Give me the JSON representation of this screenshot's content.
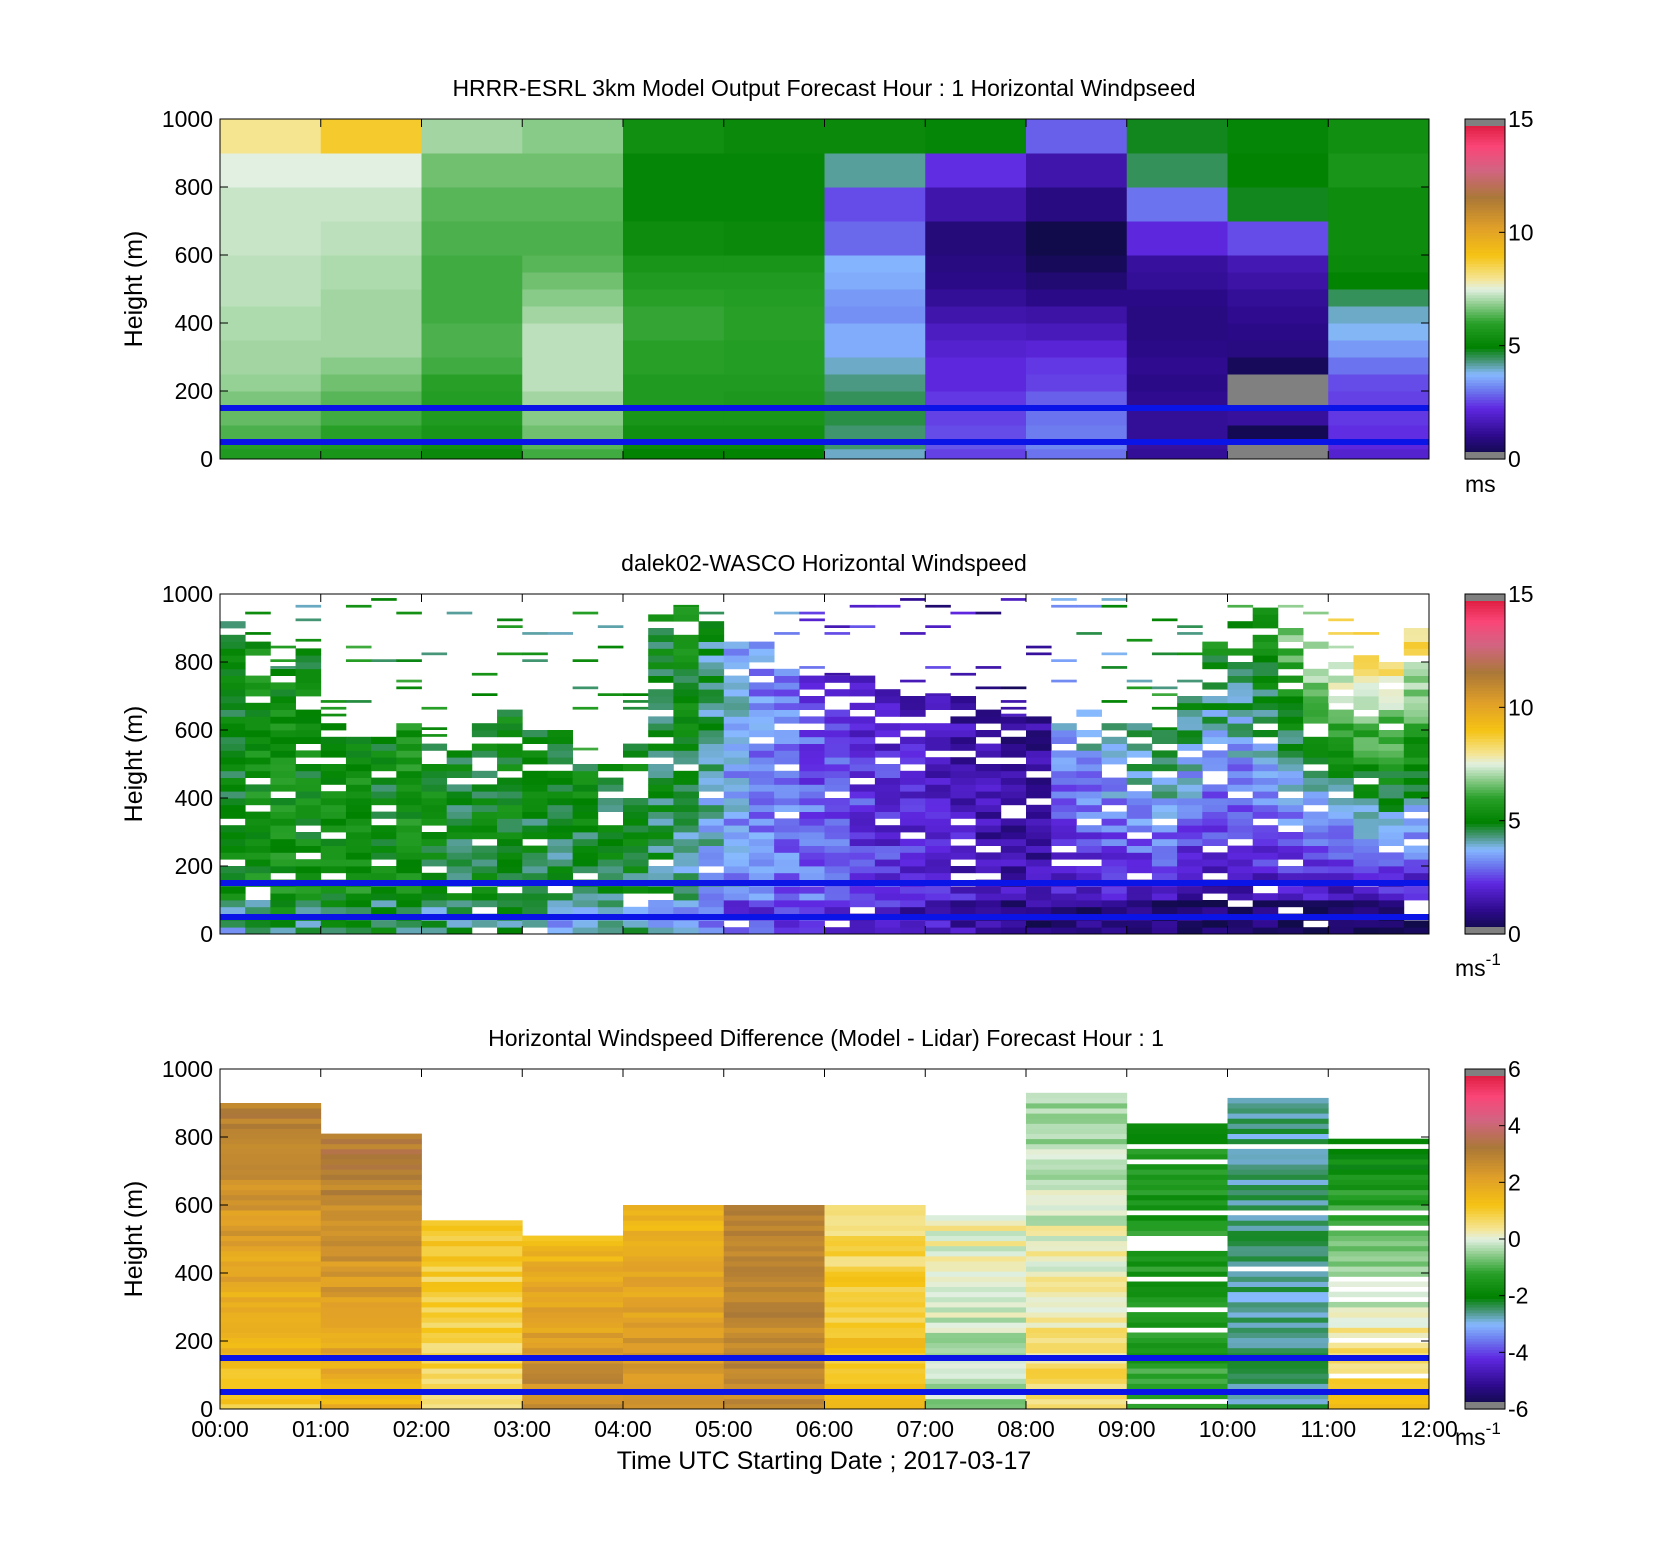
{
  "figure": {
    "x_ticks": [
      "00:00",
      "01:00",
      "02:00",
      "03:00",
      "04:00",
      "05:00",
      "06:00",
      "07:00",
      "08:00",
      "09:00",
      "10:00",
      "11:00",
      "12:00"
    ],
    "x_label": "Time UTC  Starting Date ; 2017-03-17"
  },
  "chart_data": [
    {
      "type": "heatmap",
      "title": "HRRR-ESRL 3km Model Output   Forecast Hour : 1 Horizontal Windpseed",
      "ylabel": "Height (m)",
      "x_range_hours": [
        0,
        12
      ],
      "ylim": [
        0,
        1000
      ],
      "y_ticks": [
        0,
        200,
        400,
        600,
        800,
        1000
      ],
      "colorbar": {
        "ticks": [
          0,
          5,
          10,
          15
        ],
        "unit": "ms",
        "range": [
          0,
          15
        ]
      },
      "reference_lines_m": [
        150,
        50
      ],
      "colors": {
        "reference_line": "#0a14e6",
        "missing": "#808080"
      },
      "cell_height_edges_m": [
        0,
        30,
        60,
        100,
        150,
        200,
        250,
        300,
        350,
        400,
        450,
        500,
        550,
        600,
        700,
        800,
        900,
        1000
      ],
      "columns_hour_start": [
        0,
        1,
        2,
        3,
        4,
        5,
        6,
        7,
        8,
        9,
        10,
        11
      ],
      "values": [
        [
          5.8,
          5.6,
          5.2,
          6.2,
          5.0,
          5.0,
          4.0,
          2.5,
          3.0,
          1.2,
          0.0,
          2.0
        ],
        [
          6.0,
          5.8,
          5.4,
          6.4,
          5.2,
          5.2,
          4.4,
          2.7,
          3.2,
          1.3,
          0.0,
          2.2
        ],
        [
          6.3,
          6.0,
          5.6,
          6.6,
          5.4,
          5.4,
          4.4,
          2.6,
          3.1,
          1.2,
          0.3,
          2.3
        ],
        [
          6.5,
          6.2,
          5.8,
          6.8,
          5.6,
          5.6,
          4.6,
          2.5,
          3.0,
          1.2,
          1.3,
          2.4
        ],
        [
          6.7,
          6.4,
          5.9,
          7.0,
          5.8,
          5.7,
          4.5,
          2.4,
          2.8,
          1.1,
          0.0,
          2.5
        ],
        [
          6.9,
          6.6,
          6.0,
          7.2,
          5.8,
          5.8,
          4.3,
          2.2,
          2.5,
          1.0,
          0.0,
          2.6
        ],
        [
          7.0,
          6.8,
          6.2,
          7.2,
          6.0,
          5.9,
          4.0,
          2.2,
          2.4,
          1.1,
          0.4,
          3.0
        ],
        [
          7.0,
          7.0,
          6.3,
          7.2,
          6.0,
          5.9,
          3.6,
          2.0,
          2.1,
          1.0,
          0.9,
          3.4
        ],
        [
          7.1,
          7.0,
          6.3,
          7.2,
          6.1,
          6.0,
          3.6,
          1.8,
          1.7,
          0.9,
          1.0,
          3.8
        ],
        [
          7.1,
          7.0,
          6.2,
          7.0,
          6.1,
          6.0,
          3.3,
          1.5,
          1.4,
          0.9,
          1.1,
          4.0
        ],
        [
          7.2,
          7.0,
          6.2,
          6.8,
          6.0,
          5.9,
          3.4,
          1.2,
          1.0,
          1.0,
          1.2,
          4.5
        ],
        [
          7.2,
          7.1,
          6.2,
          6.6,
          5.8,
          5.8,
          3.6,
          1.0,
          0.7,
          1.2,
          1.4,
          5.0
        ],
        [
          7.2,
          7.1,
          6.2,
          6.4,
          5.6,
          5.6,
          3.7,
          0.9,
          0.4,
          1.3,
          1.6,
          5.2
        ],
        [
          7.3,
          7.2,
          6.3,
          6.3,
          5.3,
          5.2,
          2.9,
          0.8,
          0.2,
          2.2,
          2.6,
          5.3
        ],
        [
          7.3,
          7.3,
          6.4,
          6.4,
          5.1,
          5.1,
          2.6,
          1.5,
          0.9,
          3.0,
          4.8,
          5.3
        ],
        [
          7.5,
          7.5,
          6.6,
          6.6,
          5.1,
          5.1,
          4.2,
          2.3,
          1.5,
          4.5,
          5.0,
          5.6
        ],
        [
          8.0,
          8.8,
          7.0,
          6.8,
          5.4,
          5.2,
          5.2,
          5.1,
          2.8,
          4.8,
          5.1,
          5.4
        ]
      ]
    },
    {
      "type": "heatmap",
      "title": "dalek02-WASCO  Horizontal Windspeed",
      "ylabel": "Height (m)",
      "x_range_hours": [
        0,
        12
      ],
      "ylim": [
        0,
        1000
      ],
      "y_ticks": [
        0,
        200,
        400,
        600,
        800,
        1000
      ],
      "colorbar": {
        "ticks": [
          0,
          5,
          10,
          15
        ],
        "unit": "ms",
        "unit_exponent": "-1",
        "range": [
          0,
          15
        ]
      },
      "reference_lines_m": [
        150,
        50
      ],
      "colors": {
        "reference_line": "#0a14e6",
        "missing": "#808080"
      },
      "time_step_minutes": 15,
      "data_top_m": [
        940,
        860,
        780,
        840,
        620,
        600,
        600,
        640,
        560,
        580,
        620,
        660,
        620,
        620,
        540,
        500,
        560,
        980,
        960,
        920,
        880,
        850,
        780,
        780,
        760,
        760,
        720,
        700,
        700,
        700,
        660,
        640,
        640,
        640,
        660,
        640,
        620,
        600,
        700,
        860,
        940,
        960,
        900,
        860,
        800,
        820,
        840,
        940
      ],
      "profile_bottom_speed": [
        5.0,
        5.3,
        5.6,
        5.4,
        5.3,
        5.6,
        5.2,
        5.4,
        5.0,
        4.8,
        4.8,
        5.0,
        4.6,
        4.4,
        4.5,
        4.6,
        4.6,
        4.4,
        4.0,
        3.6,
        3.4,
        3.2,
        3.0,
        3.0,
        2.8,
        2.6,
        2.5,
        2.4,
        2.2,
        2.0,
        1.8,
        1.6,
        1.5,
        1.4,
        1.5,
        1.4,
        1.3,
        1.2,
        1.1,
        1.0,
        1.0,
        1.2,
        1.0,
        1.1,
        0.9,
        0.8,
        0.8,
        0.9
      ],
      "profile_top_speed": [
        5.0,
        5.4,
        5.2,
        5.0,
        5.5,
        5.2,
        5.0,
        5.4,
        5.2,
        5.0,
        5.1,
        5.2,
        5.0,
        5.0,
        5.2,
        5.0,
        5.0,
        5.0,
        5.4,
        4.6,
        3.6,
        3.2,
        3.0,
        2.6,
        2.4,
        2.2,
        2.0,
        1.8,
        1.6,
        1.4,
        1.2,
        1.0,
        1.2,
        3.8,
        4.2,
        4.6,
        5.0,
        5.2,
        5.0,
        5.4,
        5.6,
        6.2,
        7.0,
        7.6,
        7.8,
        8.5,
        8.8,
        9.0
      ]
    },
    {
      "type": "heatmap",
      "title": "Horizontal Windspeed Difference (Model - Lidar) Forecast Hour : 1",
      "ylabel": "Height (m)",
      "x_range_hours": [
        0,
        12
      ],
      "ylim": [
        0,
        1000
      ],
      "y_ticks": [
        0,
        200,
        400,
        600,
        800,
        1000
      ],
      "colorbar": {
        "ticks": [
          -6,
          -4,
          -2,
          0,
          2,
          4,
          6
        ],
        "unit": "ms",
        "unit_exponent": "-1",
        "range": [
          -6,
          6
        ]
      },
      "reference_lines_m": [
        150,
        50
      ],
      "colors": {
        "reference_line": "#0a14e6",
        "missing": "#808080"
      },
      "columns_hour_start": [
        0,
        1,
        2,
        3,
        4,
        5,
        6,
        7,
        8,
        9,
        10,
        11
      ],
      "data_top_m": [
        900,
        800,
        550,
        510,
        600,
        600,
        600,
        570,
        930,
        840,
        930,
        810
      ],
      "profile_bottom_diff": [
        1.2,
        1.6,
        0.8,
        2.8,
        2.6,
        2.8,
        1.4,
        -0.4,
        0.8,
        -1.2,
        -2.6,
        1.2
      ],
      "profile_top_diff": [
        3.0,
        3.2,
        1.0,
        1.4,
        1.5,
        2.9,
        0.6,
        0.2,
        -0.6,
        -1.6,
        -2.6,
        -2.2
      ]
    }
  ]
}
